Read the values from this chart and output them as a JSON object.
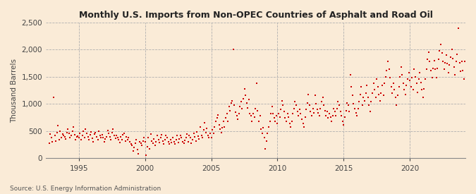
{
  "title": "Monthly U.S. Imports from Non-OPEC Countries of Asphalt and Road Oil",
  "ylabel": "Thousand Barrels",
  "source": "Source: U.S. Energy Information Administration",
  "background_color": "#faebd7",
  "dot_color": "#cc0000",
  "dot_size": 4,
  "xlim_start": 1992.5,
  "xlim_end": 2024.2,
  "ylim": [
    0,
    2500
  ],
  "yticks": [
    0,
    500,
    1000,
    1500,
    2000,
    2500
  ],
  "xticks": [
    1995,
    2000,
    2005,
    2010,
    2015,
    2020
  ],
  "data_points": [
    [
      1992.75,
      280
    ],
    [
      1992.83,
      450
    ],
    [
      1992.92,
      380
    ],
    [
      1993.0,
      300
    ],
    [
      1993.08,
      1120
    ],
    [
      1993.17,
      420
    ],
    [
      1993.25,
      320
    ],
    [
      1993.33,
      480
    ],
    [
      1993.42,
      600
    ],
    [
      1993.5,
      350
    ],
    [
      1993.58,
      500
    ],
    [
      1993.67,
      380
    ],
    [
      1993.75,
      450
    ],
    [
      1993.83,
      420
    ],
    [
      1993.92,
      390
    ],
    [
      1994.0,
      360
    ],
    [
      1994.08,
      480
    ],
    [
      1994.17,
      540
    ],
    [
      1994.25,
      460
    ],
    [
      1994.33,
      380
    ],
    [
      1994.42,
      420
    ],
    [
      1994.5,
      500
    ],
    [
      1994.58,
      580
    ],
    [
      1994.67,
      430
    ],
    [
      1994.75,
      350
    ],
    [
      1994.83,
      390
    ],
    [
      1994.92,
      410
    ],
    [
      1995.0,
      380
    ],
    [
      1995.08,
      460
    ],
    [
      1995.17,
      340
    ],
    [
      1995.25,
      420
    ],
    [
      1995.33,
      500
    ],
    [
      1995.42,
      380
    ],
    [
      1995.5,
      540
    ],
    [
      1995.58,
      460
    ],
    [
      1995.67,
      390
    ],
    [
      1995.75,
      350
    ],
    [
      1995.83,
      430
    ],
    [
      1995.92,
      490
    ],
    [
      1996.0,
      370
    ],
    [
      1996.08,
      310
    ],
    [
      1996.17,
      450
    ],
    [
      1996.25,
      480
    ],
    [
      1996.33,
      400
    ],
    [
      1996.42,
      340
    ],
    [
      1996.5,
      500
    ],
    [
      1996.58,
      420
    ],
    [
      1996.67,
      380
    ],
    [
      1996.75,
      440
    ],
    [
      1996.83,
      380
    ],
    [
      1996.92,
      310
    ],
    [
      1997.0,
      360
    ],
    [
      1997.08,
      400
    ],
    [
      1997.17,
      510
    ],
    [
      1997.25,
      460
    ],
    [
      1997.33,
      390
    ],
    [
      1997.42,
      350
    ],
    [
      1997.5,
      480
    ],
    [
      1997.58,
      540
    ],
    [
      1997.67,
      420
    ],
    [
      1997.75,
      370
    ],
    [
      1997.83,
      420
    ],
    [
      1997.92,
      380
    ],
    [
      1998.0,
      350
    ],
    [
      1998.08,
      290
    ],
    [
      1998.17,
      400
    ],
    [
      1998.25,
      350
    ],
    [
      1998.33,
      430
    ],
    [
      1998.42,
      460
    ],
    [
      1998.5,
      320
    ],
    [
      1998.58,
      390
    ],
    [
      1998.67,
      340
    ],
    [
      1998.75,
      380
    ],
    [
      1998.83,
      310
    ],
    [
      1998.92,
      270
    ],
    [
      1999.0,
      240
    ],
    [
      1999.08,
      130
    ],
    [
      1999.17,
      200
    ],
    [
      1999.25,
      280
    ],
    [
      1999.33,
      340
    ],
    [
      1999.42,
      160
    ],
    [
      1999.5,
      90
    ],
    [
      1999.58,
      310
    ],
    [
      1999.67,
      280
    ],
    [
      1999.75,
      240
    ],
    [
      1999.83,
      320
    ],
    [
      1999.92,
      380
    ],
    [
      2000.0,
      300
    ],
    [
      2000.08,
      60
    ],
    [
      2000.17,
      220
    ],
    [
      2000.25,
      380
    ],
    [
      2000.33,
      180
    ],
    [
      2000.42,
      450
    ],
    [
      2000.5,
      320
    ],
    [
      2000.58,
      280
    ],
    [
      2000.67,
      360
    ],
    [
      2000.75,
      240
    ],
    [
      2000.83,
      310
    ],
    [
      2000.92,
      420
    ],
    [
      2001.0,
      350
    ],
    [
      2001.08,
      290
    ],
    [
      2001.17,
      380
    ],
    [
      2001.25,
      440
    ],
    [
      2001.33,
      320
    ],
    [
      2001.42,
      270
    ],
    [
      2001.5,
      350
    ],
    [
      2001.58,
      420
    ],
    [
      2001.67,
      380
    ],
    [
      2001.75,
      310
    ],
    [
      2001.83,
      260
    ],
    [
      2001.92,
      340
    ],
    [
      2002.0,
      290
    ],
    [
      2002.08,
      380
    ],
    [
      2002.17,
      310
    ],
    [
      2002.25,
      260
    ],
    [
      2002.33,
      350
    ],
    [
      2002.42,
      420
    ],
    [
      2002.5,
      290
    ],
    [
      2002.58,
      360
    ],
    [
      2002.67,
      420
    ],
    [
      2002.75,
      380
    ],
    [
      2002.83,
      310
    ],
    [
      2002.92,
      280
    ],
    [
      2003.0,
      330
    ],
    [
      2003.08,
      380
    ],
    [
      2003.17,
      450
    ],
    [
      2003.25,
      310
    ],
    [
      2003.33,
      420
    ],
    [
      2003.42,
      380
    ],
    [
      2003.5,
      280
    ],
    [
      2003.58,
      350
    ],
    [
      2003.67,
      460
    ],
    [
      2003.75,
      390
    ],
    [
      2003.83,
      320
    ],
    [
      2003.92,
      490
    ],
    [
      2004.0,
      410
    ],
    [
      2004.08,
      360
    ],
    [
      2004.17,
      580
    ],
    [
      2004.25,
      420
    ],
    [
      2004.33,
      380
    ],
    [
      2004.42,
      520
    ],
    [
      2004.5,
      650
    ],
    [
      2004.58,
      480
    ],
    [
      2004.67,
      550
    ],
    [
      2004.75,
      420
    ],
    [
      2004.83,
      380
    ],
    [
      2004.92,
      460
    ],
    [
      2005.0,
      380
    ],
    [
      2005.08,
      520
    ],
    [
      2005.17,
      460
    ],
    [
      2005.25,
      580
    ],
    [
      2005.33,
      680
    ],
    [
      2005.42,
      750
    ],
    [
      2005.5,
      800
    ],
    [
      2005.58,
      620
    ],
    [
      2005.67,
      540
    ],
    [
      2005.75,
      480
    ],
    [
      2005.83,
      560
    ],
    [
      2005.92,
      680
    ],
    [
      2006.0,
      580
    ],
    [
      2006.08,
      750
    ],
    [
      2006.17,
      820
    ],
    [
      2006.25,
      680
    ],
    [
      2006.33,
      950
    ],
    [
      2006.42,
      880
    ],
    [
      2006.5,
      1020
    ],
    [
      2006.58,
      1060
    ],
    [
      2006.67,
      2000
    ],
    [
      2006.75,
      980
    ],
    [
      2006.83,
      850
    ],
    [
      2006.92,
      780
    ],
    [
      2007.0,
      720
    ],
    [
      2007.08,
      820
    ],
    [
      2007.17,
      960
    ],
    [
      2007.25,
      1050
    ],
    [
      2007.33,
      920
    ],
    [
      2007.42,
      1100
    ],
    [
      2007.5,
      1280
    ],
    [
      2007.58,
      1160
    ],
    [
      2007.67,
      1020
    ],
    [
      2007.75,
      930
    ],
    [
      2007.83,
      1080
    ],
    [
      2007.92,
      820
    ],
    [
      2008.0,
      780
    ],
    [
      2008.08,
      680
    ],
    [
      2008.17,
      820
    ],
    [
      2008.25,
      760
    ],
    [
      2008.33,
      920
    ],
    [
      2008.42,
      1380
    ],
    [
      2008.5,
      880
    ],
    [
      2008.58,
      680
    ],
    [
      2008.67,
      780
    ],
    [
      2008.75,
      540
    ],
    [
      2008.83,
      460
    ],
    [
      2008.92,
      560
    ],
    [
      2009.0,
      380
    ],
    [
      2009.08,
      180
    ],
    [
      2009.17,
      320
    ],
    [
      2009.25,
      460
    ],
    [
      2009.33,
      580
    ],
    [
      2009.42,
      680
    ],
    [
      2009.5,
      820
    ],
    [
      2009.58,
      960
    ],
    [
      2009.67,
      820
    ],
    [
      2009.75,
      740
    ],
    [
      2009.83,
      680
    ],
    [
      2009.92,
      780
    ],
    [
      2010.0,
      640
    ],
    [
      2010.08,
      820
    ],
    [
      2010.17,
      760
    ],
    [
      2010.25,
      900
    ],
    [
      2010.33,
      1060
    ],
    [
      2010.42,
      980
    ],
    [
      2010.5,
      860
    ],
    [
      2010.58,
      740
    ],
    [
      2010.67,
      680
    ],
    [
      2010.75,
      820
    ],
    [
      2010.83,
      760
    ],
    [
      2010.92,
      640
    ],
    [
      2011.0,
      580
    ],
    [
      2011.08,
      680
    ],
    [
      2011.17,
      820
    ],
    [
      2011.25,
      920
    ],
    [
      2011.33,
      1050
    ],
    [
      2011.42,
      980
    ],
    [
      2011.5,
      860
    ],
    [
      2011.58,
      780
    ],
    [
      2011.67,
      900
    ],
    [
      2011.75,
      820
    ],
    [
      2011.83,
      720
    ],
    [
      2011.92,
      640
    ],
    [
      2012.0,
      580
    ],
    [
      2012.08,
      760
    ],
    [
      2012.17,
      900
    ],
    [
      2012.25,
      1020
    ],
    [
      2012.33,
      1180
    ],
    [
      2012.42,
      980
    ],
    [
      2012.5,
      860
    ],
    [
      2012.58,
      780
    ],
    [
      2012.67,
      920
    ],
    [
      2012.75,
      840
    ],
    [
      2012.83,
      1160
    ],
    [
      2012.92,
      1000
    ],
    [
      2013.0,
      900
    ],
    [
      2013.08,
      840
    ],
    [
      2013.17,
      780
    ],
    [
      2013.25,
      920
    ],
    [
      2013.33,
      1050
    ],
    [
      2013.42,
      1120
    ],
    [
      2013.5,
      980
    ],
    [
      2013.58,
      880
    ],
    [
      2013.67,
      780
    ],
    [
      2013.75,
      860
    ],
    [
      2013.83,
      740
    ],
    [
      2013.92,
      820
    ],
    [
      2014.0,
      760
    ],
    [
      2014.08,
      680
    ],
    [
      2014.17,
      780
    ],
    [
      2014.25,
      920
    ],
    [
      2014.33,
      860
    ],
    [
      2014.42,
      780
    ],
    [
      2014.5,
      920
    ],
    [
      2014.58,
      1050
    ],
    [
      2014.67,
      980
    ],
    [
      2014.75,
      860
    ],
    [
      2014.83,
      780
    ],
    [
      2014.92,
      680
    ],
    [
      2015.0,
      620
    ],
    [
      2015.08,
      760
    ],
    [
      2015.17,
      880
    ],
    [
      2015.25,
      1020
    ],
    [
      2015.33,
      980
    ],
    [
      2015.42,
      860
    ],
    [
      2015.5,
      1540
    ],
    [
      2015.58,
      1320
    ],
    [
      2015.67,
      1160
    ],
    [
      2015.75,
      1000
    ],
    [
      2015.83,
      920
    ],
    [
      2015.92,
      840
    ],
    [
      2016.0,
      780
    ],
    [
      2016.08,
      920
    ],
    [
      2016.17,
      1050
    ],
    [
      2016.25,
      1180
    ],
    [
      2016.33,
      1320
    ],
    [
      2016.42,
      980
    ],
    [
      2016.5,
      1120
    ],
    [
      2016.58,
      1060
    ],
    [
      2016.67,
      1200
    ],
    [
      2016.75,
      1340
    ],
    [
      2016.83,
      1120
    ],
    [
      2016.92,
      980
    ],
    [
      2017.0,
      860
    ],
    [
      2017.08,
      1050
    ],
    [
      2017.17,
      1200
    ],
    [
      2017.25,
      1380
    ],
    [
      2017.33,
      1260
    ],
    [
      2017.42,
      1120
    ],
    [
      2017.5,
      1460
    ],
    [
      2017.58,
      1320
    ],
    [
      2017.67,
      1180
    ],
    [
      2017.75,
      1060
    ],
    [
      2017.83,
      1200
    ],
    [
      2017.92,
      1340
    ],
    [
      2018.0,
      1160
    ],
    [
      2018.08,
      1380
    ],
    [
      2018.17,
      1500
    ],
    [
      2018.25,
      1620
    ],
    [
      2018.33,
      1780
    ],
    [
      2018.42,
      1640
    ],
    [
      2018.5,
      1480
    ],
    [
      2018.58,
      1320
    ],
    [
      2018.67,
      1200
    ],
    [
      2018.75,
      1380
    ],
    [
      2018.83,
      1260
    ],
    [
      2018.92,
      1120
    ],
    [
      2019.0,
      980
    ],
    [
      2019.08,
      1160
    ],
    [
      2019.17,
      1320
    ],
    [
      2019.25,
      1500
    ],
    [
      2019.33,
      1680
    ],
    [
      2019.42,
      1540
    ],
    [
      2019.5,
      1380
    ],
    [
      2019.58,
      1260
    ],
    [
      2019.67,
      1180
    ],
    [
      2019.75,
      1340
    ],
    [
      2019.83,
      1460
    ],
    [
      2019.92,
      1580
    ],
    [
      2020.0,
      1440
    ],
    [
      2020.08,
      1320
    ],
    [
      2020.17,
      1480
    ],
    [
      2020.25,
      1260
    ],
    [
      2020.33,
      1640
    ],
    [
      2020.42,
      1500
    ],
    [
      2020.5,
      1380
    ],
    [
      2020.58,
      1220
    ],
    [
      2020.67,
      1460
    ],
    [
      2020.75,
      1580
    ],
    [
      2020.83,
      1400
    ],
    [
      2020.92,
      1260
    ],
    [
      2021.0,
      1120
    ],
    [
      2021.08,
      1280
    ],
    [
      2021.17,
      1460
    ],
    [
      2021.25,
      1640
    ],
    [
      2021.33,
      1820
    ],
    [
      2021.42,
      1960
    ],
    [
      2021.5,
      1780
    ],
    [
      2021.58,
      1620
    ],
    [
      2021.67,
      1480
    ],
    [
      2021.75,
      1660
    ],
    [
      2021.83,
      1800
    ],
    [
      2021.92,
      1640
    ],
    [
      2022.0,
      1480
    ],
    [
      2022.08,
      1660
    ],
    [
      2022.17,
      1820
    ],
    [
      2022.25,
      1980
    ],
    [
      2022.33,
      2100
    ],
    [
      2022.42,
      1940
    ],
    [
      2022.5,
      1780
    ],
    [
      2022.58,
      1640
    ],
    [
      2022.67,
      1760
    ],
    [
      2022.75,
      1900
    ],
    [
      2022.83,
      1740
    ],
    [
      2022.92,
      1580
    ],
    [
      2023.0,
      1720
    ],
    [
      2023.08,
      1860
    ],
    [
      2023.17,
      2000
    ],
    [
      2023.25,
      1840
    ],
    [
      2023.33,
      1680
    ],
    [
      2023.42,
      1540
    ],
    [
      2023.5,
      1780
    ],
    [
      2023.58,
      1920
    ],
    [
      2023.67,
      2400
    ],
    [
      2023.75,
      1760
    ],
    [
      2023.83,
      1600
    ],
    [
      2023.92,
      1780
    ],
    [
      2024.0,
      1620
    ],
    [
      2024.08,
      1460
    ],
    [
      2024.17,
      1780
    ]
  ]
}
